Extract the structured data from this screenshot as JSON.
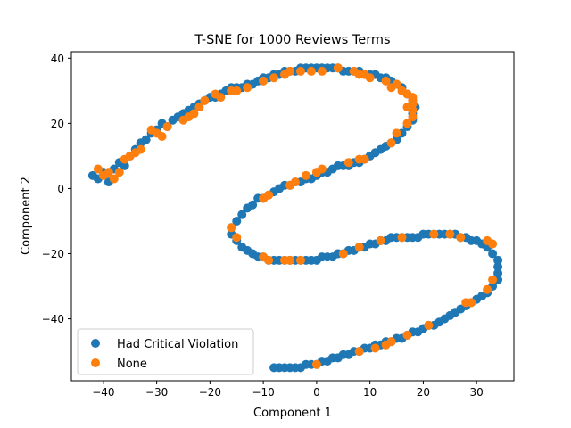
{
  "chart_data": {
    "type": "scatter",
    "title": "T-SNE for 1000 Reviews Terms",
    "xlabel": "Component 1",
    "ylabel": "Component 2",
    "xlim": [
      -46,
      37
    ],
    "ylim": [
      -59,
      42
    ],
    "xticks": [
      -40,
      -30,
      -20,
      -10,
      0,
      10,
      20,
      30
    ],
    "yticks": [
      -40,
      -20,
      0,
      20,
      40
    ],
    "grid": false,
    "legend_position": "lower-left",
    "colors": {
      "Had Critical Violation": "#1f77b4",
      "None": "#ff7f0e"
    },
    "series": [
      {
        "name": "Had Critical Violation",
        "points": [
          [
            -42,
            4
          ],
          [
            -41,
            3
          ],
          [
            -40,
            5
          ],
          [
            -39,
            2
          ],
          [
            -38,
            6
          ],
          [
            -37,
            8
          ],
          [
            -36,
            7
          ],
          [
            -35,
            10
          ],
          [
            -34,
            12
          ],
          [
            -33,
            14
          ],
          [
            -32,
            15
          ],
          [
            -31,
            17
          ],
          [
            -30,
            18
          ],
          [
            -29,
            20
          ],
          [
            -28,
            19
          ],
          [
            -27,
            21
          ],
          [
            -26,
            22
          ],
          [
            -25,
            23
          ],
          [
            -24,
            24
          ],
          [
            -23,
            25
          ],
          [
            -22,
            26
          ],
          [
            -21,
            27
          ],
          [
            -20,
            28
          ],
          [
            -19,
            28
          ],
          [
            -18,
            29
          ],
          [
            -17,
            30
          ],
          [
            -16,
            31
          ],
          [
            -15,
            31
          ],
          [
            -14,
            31
          ],
          [
            -13,
            32
          ],
          [
            -12,
            32
          ],
          [
            -11,
            33
          ],
          [
            -10,
            34
          ],
          [
            -9,
            34
          ],
          [
            -8,
            35
          ],
          [
            -7,
            35
          ],
          [
            -6,
            36
          ],
          [
            -5,
            36
          ],
          [
            -4,
            36
          ],
          [
            -3,
            37
          ],
          [
            -2,
            37
          ],
          [
            -1,
            37
          ],
          [
            0,
            37
          ],
          [
            1,
            37
          ],
          [
            2,
            37
          ],
          [
            3,
            37
          ],
          [
            4,
            37
          ],
          [
            5,
            36
          ],
          [
            6,
            36
          ],
          [
            7,
            36
          ],
          [
            8,
            36
          ],
          [
            9,
            35
          ],
          [
            10,
            35
          ],
          [
            11,
            35
          ],
          [
            12,
            34
          ],
          [
            13,
            34
          ],
          [
            14,
            33
          ],
          [
            15,
            32
          ],
          [
            16,
            31
          ],
          [
            17,
            29
          ],
          [
            18,
            27
          ],
          [
            18.5,
            25
          ],
          [
            18,
            23
          ],
          [
            18,
            21
          ],
          [
            17,
            19
          ],
          [
            16,
            17
          ],
          [
            15,
            15
          ],
          [
            14,
            14
          ],
          [
            13,
            13
          ],
          [
            12,
            12
          ],
          [
            11,
            11
          ],
          [
            10,
            10
          ],
          [
            9,
            9
          ],
          [
            8,
            8
          ],
          [
            7,
            8
          ],
          [
            6,
            7
          ],
          [
            5,
            7
          ],
          [
            4,
            7
          ],
          [
            3,
            6
          ],
          [
            2,
            5
          ],
          [
            1,
            5
          ],
          [
            0,
            4
          ],
          [
            -1,
            3
          ],
          [
            -2,
            3
          ],
          [
            -3,
            2
          ],
          [
            -4,
            2
          ],
          [
            -5,
            1
          ],
          [
            -6,
            1
          ],
          [
            -7,
            0
          ],
          [
            -8,
            -1
          ],
          [
            -9,
            -2
          ],
          [
            -10,
            -3
          ],
          [
            -11,
            -3
          ],
          [
            -12,
            -5
          ],
          [
            -13,
            -6
          ],
          [
            -14,
            -8
          ],
          [
            -15,
            -10
          ],
          [
            -16,
            -12
          ],
          [
            -16,
            -14
          ],
          [
            -15,
            -16
          ],
          [
            -14,
            -18
          ],
          [
            -13,
            -19
          ],
          [
            -12,
            -20
          ],
          [
            -11,
            -21
          ],
          [
            -10,
            -21
          ],
          [
            -9,
            -22
          ],
          [
            -8,
            -22
          ],
          [
            -7,
            -22
          ],
          [
            -6,
            -22
          ],
          [
            -5,
            -22
          ],
          [
            -4,
            -22
          ],
          [
            -3,
            -22
          ],
          [
            -2,
            -22
          ],
          [
            -1,
            -22
          ],
          [
            0,
            -22
          ],
          [
            1,
            -21
          ],
          [
            2,
            -21
          ],
          [
            3,
            -21
          ],
          [
            4,
            -20
          ],
          [
            5,
            -20
          ],
          [
            6,
            -19
          ],
          [
            7,
            -19
          ],
          [
            8,
            -18
          ],
          [
            9,
            -18
          ],
          [
            10,
            -17
          ],
          [
            11,
            -17
          ],
          [
            12,
            -16
          ],
          [
            13,
            -16
          ],
          [
            14,
            -15
          ],
          [
            15,
            -15
          ],
          [
            16,
            -15
          ],
          [
            17,
            -15
          ],
          [
            18,
            -15
          ],
          [
            19,
            -15
          ],
          [
            20,
            -14
          ],
          [
            21,
            -14
          ],
          [
            22,
            -14
          ],
          [
            23,
            -14
          ],
          [
            24,
            -14
          ],
          [
            25,
            -14
          ],
          [
            26,
            -14
          ],
          [
            27,
            -15
          ],
          [
            28,
            -15
          ],
          [
            29,
            -16
          ],
          [
            30,
            -16
          ],
          [
            31,
            -17
          ],
          [
            32,
            -18
          ],
          [
            33,
            -20
          ],
          [
            34,
            -22
          ],
          [
            34,
            -24
          ],
          [
            34,
            -26
          ],
          [
            34,
            -28
          ],
          [
            33,
            -30
          ],
          [
            32,
            -32
          ],
          [
            31,
            -33
          ],
          [
            30,
            -34
          ],
          [
            29,
            -35
          ],
          [
            28,
            -36
          ],
          [
            27,
            -37
          ],
          [
            26,
            -38
          ],
          [
            25,
            -39
          ],
          [
            24,
            -40
          ],
          [
            23,
            -41
          ],
          [
            22,
            -42
          ],
          [
            21,
            -42
          ],
          [
            20,
            -43
          ],
          [
            19,
            -44
          ],
          [
            18,
            -44
          ],
          [
            17,
            -45
          ],
          [
            16,
            -46
          ],
          [
            15,
            -46
          ],
          [
            14,
            -47
          ],
          [
            13,
            -47
          ],
          [
            12,
            -48
          ],
          [
            11,
            -48
          ],
          [
            10,
            -49
          ],
          [
            9,
            -49
          ],
          [
            8,
            -50
          ],
          [
            7,
            -50
          ],
          [
            6,
            -51
          ],
          [
            5,
            -51
          ],
          [
            4,
            -52
          ],
          [
            3,
            -52
          ],
          [
            2,
            -53
          ],
          [
            1,
            -53
          ],
          [
            0,
            -54
          ],
          [
            -1,
            -54
          ],
          [
            -2,
            -54
          ],
          [
            -3,
            -55
          ],
          [
            -4,
            -55
          ],
          [
            -5,
            -55
          ],
          [
            -6,
            -55
          ],
          [
            -7,
            -55
          ],
          [
            -8,
            -55
          ]
        ]
      },
      {
        "name": "None",
        "points": [
          [
            -41,
            6
          ],
          [
            -40,
            4
          ],
          [
            -39,
            5
          ],
          [
            -38,
            3
          ],
          [
            -37,
            5
          ],
          [
            -36,
            9
          ],
          [
            -35,
            10
          ],
          [
            -34,
            11
          ],
          [
            -33,
            12
          ],
          [
            -31,
            18
          ],
          [
            -30,
            17
          ],
          [
            -29,
            16
          ],
          [
            -28,
            19
          ],
          [
            -25,
            21
          ],
          [
            -24,
            22
          ],
          [
            -23,
            23
          ],
          [
            -22,
            25
          ],
          [
            -21,
            27
          ],
          [
            -19,
            29
          ],
          [
            -18,
            28
          ],
          [
            -16,
            30
          ],
          [
            -15,
            30
          ],
          [
            -13,
            31
          ],
          [
            -10,
            33
          ],
          [
            -8,
            34
          ],
          [
            -6,
            35
          ],
          [
            -5,
            36
          ],
          [
            -3,
            36
          ],
          [
            -1,
            36
          ],
          [
            1,
            36
          ],
          [
            4,
            37
          ],
          [
            7,
            36
          ],
          [
            8,
            35
          ],
          [
            9,
            35
          ],
          [
            10,
            34
          ],
          [
            13,
            33
          ],
          [
            14,
            31
          ],
          [
            15,
            32
          ],
          [
            16,
            30
          ],
          [
            17,
            29
          ],
          [
            18,
            28
          ],
          [
            18,
            27
          ],
          [
            18,
            26
          ],
          [
            17,
            25
          ],
          [
            18,
            24
          ],
          [
            18,
            22
          ],
          [
            17,
            20
          ],
          [
            15,
            17
          ],
          [
            14,
            14
          ],
          [
            9,
            9
          ],
          [
            8,
            9
          ],
          [
            6,
            8
          ],
          [
            1,
            6
          ],
          [
            0,
            5
          ],
          [
            -2,
            4
          ],
          [
            -4,
            2
          ],
          [
            -5,
            1
          ],
          [
            -9,
            -2
          ],
          [
            -10,
            -3
          ],
          [
            -16,
            -12
          ],
          [
            -15,
            -15
          ],
          [
            -10,
            -21
          ],
          [
            -9,
            -22
          ],
          [
            -6,
            -22
          ],
          [
            -5,
            -22
          ],
          [
            -3,
            -22
          ],
          [
            5,
            -20
          ],
          [
            8,
            -18
          ],
          [
            12,
            -16
          ],
          [
            16,
            -15
          ],
          [
            22,
            -14
          ],
          [
            25,
            -14
          ],
          [
            27,
            -15
          ],
          [
            32,
            -16
          ],
          [
            33,
            -17
          ],
          [
            33,
            -28
          ],
          [
            32,
            -31
          ],
          [
            29,
            -35
          ],
          [
            28,
            -35
          ],
          [
            21,
            -42
          ],
          [
            17,
            -45
          ],
          [
            14,
            -47
          ],
          [
            13,
            -48
          ],
          [
            11,
            -49
          ],
          [
            8,
            -50
          ],
          [
            0,
            -54
          ]
        ]
      }
    ]
  }
}
